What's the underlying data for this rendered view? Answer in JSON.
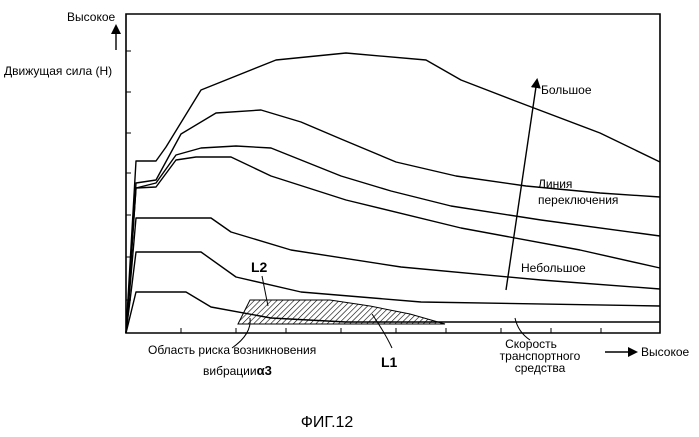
{
  "chart_data": {
    "type": "line",
    "title": "",
    "y_axis": {
      "label": "Движущая сила (Н)",
      "high_label": "Высокое"
    },
    "x_axis": {
      "label_lines": [
        "Скорость",
        "транспортного",
        "средства"
      ],
      "high_label": "Высокое"
    },
    "arrow_annotation": {
      "high_label": "Большое",
      "low_label": "Небольшое"
    },
    "shift_line_label_lines": [
      "Линия",
      "переключения"
    ],
    "region": {
      "label_line1": "Область риска возникновения",
      "label_line2": "вибрации",
      "label_symbol": "α3"
    },
    "curve_labels": {
      "l1": "L1",
      "l2": "L2"
    },
    "series": [
      {
        "curve": [
          [
            126,
            333
          ],
          [
            136,
            292
          ],
          [
            186,
            292
          ],
          [
            211,
            307
          ],
          [
            271,
            318
          ],
          [
            346,
            322
          ],
          [
            660,
            322
          ]
        ]
      },
      {
        "curve": [
          [
            126,
            333
          ],
          [
            136,
            252
          ],
          [
            201,
            252
          ],
          [
            236,
            277
          ],
          [
            301,
            292
          ],
          [
            421,
            302
          ],
          [
            660,
            306
          ]
        ]
      },
      {
        "curve": [
          [
            126,
            333
          ],
          [
            136,
            218
          ],
          [
            211,
            218
          ],
          [
            231,
            232
          ],
          [
            291,
            250
          ],
          [
            401,
            267
          ],
          [
            541,
            280
          ],
          [
            660,
            289
          ]
        ]
      },
      {
        "curve": [
          [
            126,
            333
          ],
          [
            136,
            188
          ],
          [
            156,
            187
          ],
          [
            176,
            160
          ],
          [
            196,
            157
          ],
          [
            231,
            157
          ],
          [
            271,
            176
          ],
          [
            346,
            200
          ],
          [
            461,
            228
          ],
          [
            580,
            250
          ],
          [
            660,
            268
          ]
        ]
      },
      {
        "curve": [
          [
            126,
            333
          ],
          [
            136,
            188
          ],
          [
            156,
            183
          ],
          [
            176,
            155
          ],
          [
            201,
            148
          ],
          [
            236,
            146
          ],
          [
            271,
            148
          ],
          [
            301,
            160
          ],
          [
            341,
            176
          ],
          [
            391,
            191
          ],
          [
            451,
            206
          ],
          [
            541,
            220
          ],
          [
            660,
            236
          ]
        ]
      },
      {
        "curve": [
          [
            126,
            333
          ],
          [
            136,
            183
          ],
          [
            156,
            180
          ],
          [
            181,
            134
          ],
          [
            216,
            113
          ],
          [
            261,
            110
          ],
          [
            301,
            122
          ],
          [
            341,
            139
          ],
          [
            396,
            162
          ],
          [
            456,
            176
          ],
          [
            526,
            186
          ],
          [
            600,
            193
          ],
          [
            660,
            197
          ]
        ]
      },
      {
        "curve": [
          [
            126,
            333
          ],
          [
            136,
            161
          ],
          [
            156,
            161
          ],
          [
            166,
            147
          ],
          [
            201,
            90
          ],
          [
            276,
            60
          ],
          [
            346,
            53
          ],
          [
            426,
            60
          ],
          [
            461,
            80
          ],
          [
            526,
            105
          ],
          [
            600,
            133
          ],
          [
            660,
            162
          ]
        ]
      }
    ]
  },
  "figure": {
    "caption": "ФИГ.12"
  }
}
